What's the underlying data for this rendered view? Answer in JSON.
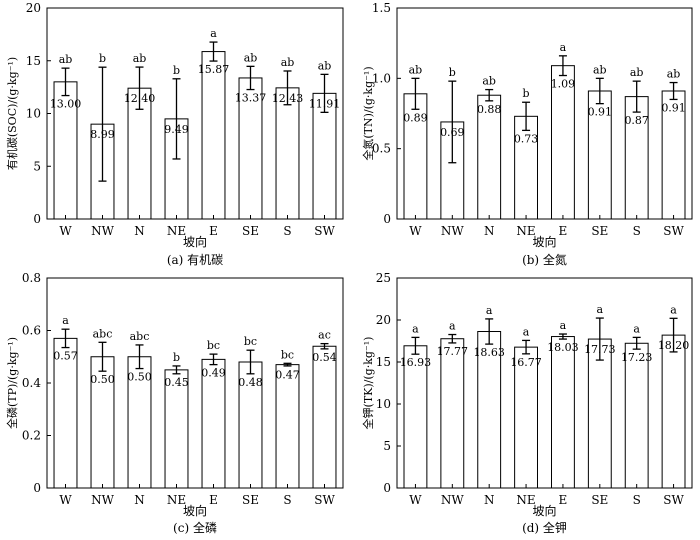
{
  "chart_data": [
    {
      "type": "bar",
      "categories": [
        "W",
        "NW",
        "N",
        "NE",
        "E",
        "SE",
        "S",
        "SW"
      ],
      "values": [
        13.0,
        8.99,
        12.4,
        9.49,
        15.87,
        13.37,
        12.43,
        11.91
      ],
      "value_labels": [
        "13.00",
        "8.99",
        "12.40",
        "9.49",
        "15.87",
        "13.37",
        "12.43",
        "11.91"
      ],
      "errors": [
        1.3,
        5.4,
        2.0,
        3.8,
        0.9,
        1.1,
        1.6,
        1.8
      ],
      "significance": [
        "ab",
        "b",
        "ab",
        "b",
        "a",
        "ab",
        "ab",
        "ab"
      ],
      "xlabel": "坡向",
      "ylabel": "有机碳(SOC)/(g·kg⁻¹)",
      "caption": "(a) 有机碳",
      "ylim": [
        0,
        20
      ],
      "yticks": [
        0,
        5,
        10,
        15,
        20
      ],
      "ytick_labels": [
        "0",
        "5",
        "10",
        "15",
        "20"
      ],
      "grid": false
    },
    {
      "type": "bar",
      "categories": [
        "W",
        "NW",
        "N",
        "NE",
        "E",
        "SE",
        "S",
        "SW"
      ],
      "values": [
        0.89,
        0.69,
        0.88,
        0.73,
        1.09,
        0.91,
        0.87,
        0.91
      ],
      "value_labels": [
        "0.89",
        "0.69",
        "0.88",
        "0.73",
        "1.09",
        "0.91",
        "0.87",
        "0.91"
      ],
      "errors": [
        0.11,
        0.29,
        0.04,
        0.1,
        0.07,
        0.09,
        0.11,
        0.06
      ],
      "significance": [
        "ab",
        "b",
        "ab",
        "b",
        "a",
        "ab",
        "ab",
        "ab"
      ],
      "xlabel": "坡向",
      "ylabel": "全氮(TN)/(g·kg⁻¹)",
      "caption": "(b) 全氮",
      "ylim": [
        0,
        1.5
      ],
      "yticks": [
        0,
        0.5,
        1.0,
        1.5
      ],
      "ytick_labels": [
        "0",
        "0.5",
        "1.0",
        "1.5"
      ],
      "grid": false
    },
    {
      "type": "bar",
      "categories": [
        "W",
        "NW",
        "N",
        "NE",
        "E",
        "SE",
        "S",
        "SW"
      ],
      "values": [
        0.57,
        0.5,
        0.5,
        0.45,
        0.49,
        0.48,
        0.47,
        0.54
      ],
      "value_labels": [
        "0.57",
        "0.50",
        "0.50",
        "0.45",
        "0.49",
        "0.48",
        "0.47",
        "0.54"
      ],
      "errors": [
        0.035,
        0.055,
        0.045,
        0.015,
        0.02,
        0.045,
        0.005,
        0.01
      ],
      "significance": [
        "a",
        "abc",
        "abc",
        "b",
        "bc",
        "bc",
        "bc",
        "ac"
      ],
      "xlabel": "坡向",
      "ylabel": "全磷(TP)/(g·kg⁻¹)",
      "caption": "(c) 全磷",
      "ylim": [
        0,
        0.8
      ],
      "yticks": [
        0,
        0.2,
        0.4,
        0.6,
        0.8
      ],
      "ytick_labels": [
        "0",
        "0.2",
        "0.4",
        "0.6",
        "0.8"
      ],
      "grid": false
    },
    {
      "type": "bar",
      "categories": [
        "W",
        "NW",
        "N",
        "NE",
        "E",
        "SE",
        "S",
        "SW"
      ],
      "values": [
        16.93,
        17.77,
        18.63,
        16.77,
        18.03,
        17.73,
        17.23,
        18.2
      ],
      "value_labels": [
        "16.93",
        "17.77",
        "18.63",
        "16.77",
        "18.03",
        "17.73",
        "17.23",
        "18.20"
      ],
      "errors": [
        1.0,
        0.5,
        1.5,
        0.8,
        0.3,
        2.5,
        0.7,
        2.0
      ],
      "significance": [
        "a",
        "a",
        "a",
        "a",
        "a",
        "a",
        "a",
        "a"
      ],
      "xlabel": "坡向",
      "ylabel": "全钾(TK)/(g·kg⁻¹)",
      "caption": "(d) 全钾",
      "ylim": [
        0,
        25
      ],
      "yticks": [
        0,
        5,
        10,
        15,
        20,
        25
      ],
      "ytick_labels": [
        "0",
        "5",
        "10",
        "15",
        "20",
        "25"
      ],
      "grid": false
    }
  ]
}
